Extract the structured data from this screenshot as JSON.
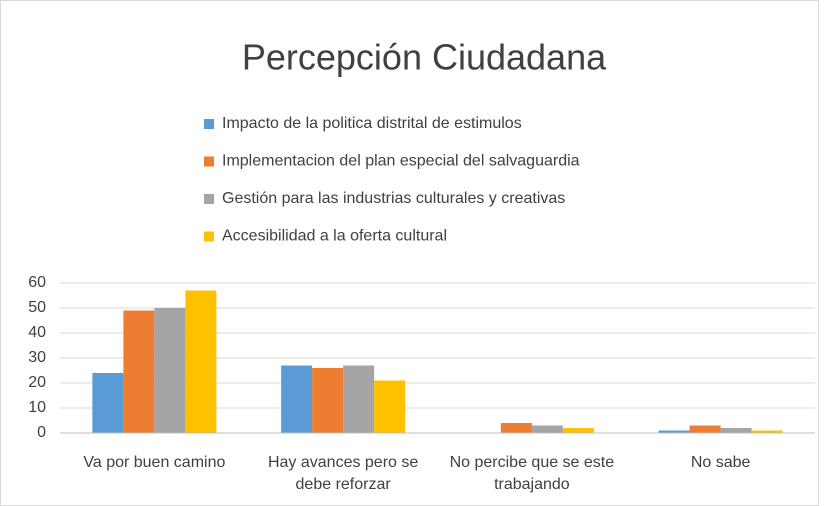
{
  "chart_data": {
    "type": "bar",
    "title": "Percepción Ciudadana",
    "categories": [
      "Va por buen camino",
      "Hay avances pero se debe reforzar",
      "No percibe que se este trabajando",
      "No sabe"
    ],
    "series": [
      {
        "name": "Impacto de la politica distrital de estimulos",
        "color": "#5b9bd5",
        "values": [
          24,
          27,
          0,
          1
        ]
      },
      {
        "name": "Implementacion del plan especial del salvaguardia",
        "color": "#ed7d31",
        "values": [
          49,
          26,
          4,
          3
        ]
      },
      {
        "name": "Gestión para las industrias culturales y creativas",
        "color": "#a5a5a5",
        "values": [
          50,
          27,
          3,
          2
        ]
      },
      {
        "name": "Accesibilidad a la oferta cultural",
        "color": "#ffc000",
        "values": [
          57,
          21,
          2,
          1
        ]
      }
    ],
    "ylim": [
      0,
      60
    ],
    "yticks": [
      0,
      10,
      20,
      30,
      40,
      50,
      60
    ],
    "grid": true,
    "legend": "top"
  }
}
